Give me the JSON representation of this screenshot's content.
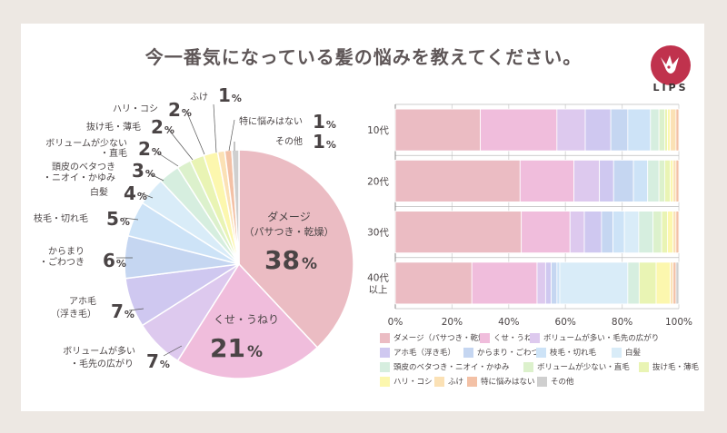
{
  "title": "今一番気になっている髪の悩みを教えてください。",
  "brand": {
    "name": "LIPS",
    "color": "#c0324d"
  },
  "chart_data": [
    {
      "type": "pie",
      "slices": [
        {
          "label": "ダメージ\n（パサつき・乾燥）",
          "value": 38,
          "color": "#ebbcc3"
        },
        {
          "label": "くせ・うねり",
          "value": 21,
          "color": "#f0bddc"
        },
        {
          "label": "ボリュームが多い\n・毛先の広がり",
          "value": 7,
          "color": "#ddc9ee"
        },
        {
          "label": "アホ毛\n（浮き毛）",
          "value": 7,
          "color": "#cfc8f0"
        },
        {
          "label": "からまり\n・ごわつき",
          "value": 6,
          "color": "#c5d6f1"
        },
        {
          "label": "枝毛・切れ毛",
          "value": 5,
          "color": "#cde3f7"
        },
        {
          "label": "白髪",
          "value": 4,
          "color": "#d9ecf8"
        },
        {
          "label": "頭皮のベタつき\n・ニオイ・かゆみ",
          "value": 3,
          "color": "#d6eedf"
        },
        {
          "label": "ボリュームが少ない\n・直毛",
          "value": 2,
          "color": "#dcf1cc"
        },
        {
          "label": "抜け毛・薄毛",
          "value": 2,
          "color": "#e9f4b4"
        },
        {
          "label": "ハリ・コシ",
          "value": 2,
          "color": "#fcf7ae"
        },
        {
          "label": "ふけ",
          "value": 1,
          "color": "#fbe1b5"
        },
        {
          "label": "特に悩みはない",
          "value": 1,
          "color": "#f3c1a6"
        },
        {
          "label": "その他",
          "value": 1,
          "color": "#cfcfcf"
        }
      ],
      "percent_suffix": "%"
    },
    {
      "type": "bar",
      "orientation": "horizontal",
      "stacked": true,
      "categories": [
        "10代",
        "20代",
        "30代",
        "40代\n以上"
      ],
      "xlim": [
        0,
        100
      ],
      "xticks": [
        "0%",
        "20%",
        "40%",
        "60%",
        "80%",
        "100%"
      ],
      "series": [
        {
          "name": "ダメージ（パサつき・乾燥）",
          "color": "#ebbcc3",
          "values": [
            30,
            44,
            44,
            27
          ]
        },
        {
          "name": "くせ・うねり",
          "color": "#f0bddc",
          "values": [
            27,
            19,
            17,
            23
          ]
        },
        {
          "name": "ボリュームが多い・毛先の広がり",
          "color": "#ddc9ee",
          "values": [
            10,
            9,
            5,
            3
          ]
        },
        {
          "name": "アホ毛（浮き毛）",
          "color": "#cfc8f0",
          "values": [
            9,
            5,
            6,
            2
          ]
        },
        {
          "name": "からまり・ごわつき",
          "color": "#c5d6f1",
          "values": [
            6,
            7,
            4,
            2
          ]
        },
        {
          "name": "枝毛・切れ毛",
          "color": "#cde3f7",
          "values": [
            8,
            5,
            4,
            1
          ]
        },
        {
          "name": "白髪",
          "color": "#d9ecf8",
          "values": [
            0,
            0,
            5,
            24
          ]
        },
        {
          "name": "頭皮のベタつき・ニオイ・かゆみ",
          "color": "#d6eedf",
          "values": [
            3,
            4,
            5,
            4
          ]
        },
        {
          "name": "ボリュームが少ない・直毛",
          "color": "#dcf1cc",
          "values": [
            2,
            2,
            3,
            0
          ]
        },
        {
          "name": "抜け毛・薄毛",
          "color": "#e9f4b4",
          "values": [
            1,
            2,
            2,
            6
          ]
        },
        {
          "name": "ハリ・コシ",
          "color": "#fcf7ae",
          "values": [
            1,
            1,
            2,
            5
          ]
        },
        {
          "name": "ふけ",
          "color": "#fbe1b5",
          "values": [
            2,
            1,
            1,
            1
          ]
        },
        {
          "name": "特に悩みはない",
          "color": "#f3c1a6",
          "values": [
            1,
            1,
            1,
            1
          ]
        },
        {
          "name": "その他",
          "color": "#cfcfcf",
          "values": [
            0,
            0,
            0,
            1
          ]
        }
      ]
    }
  ]
}
